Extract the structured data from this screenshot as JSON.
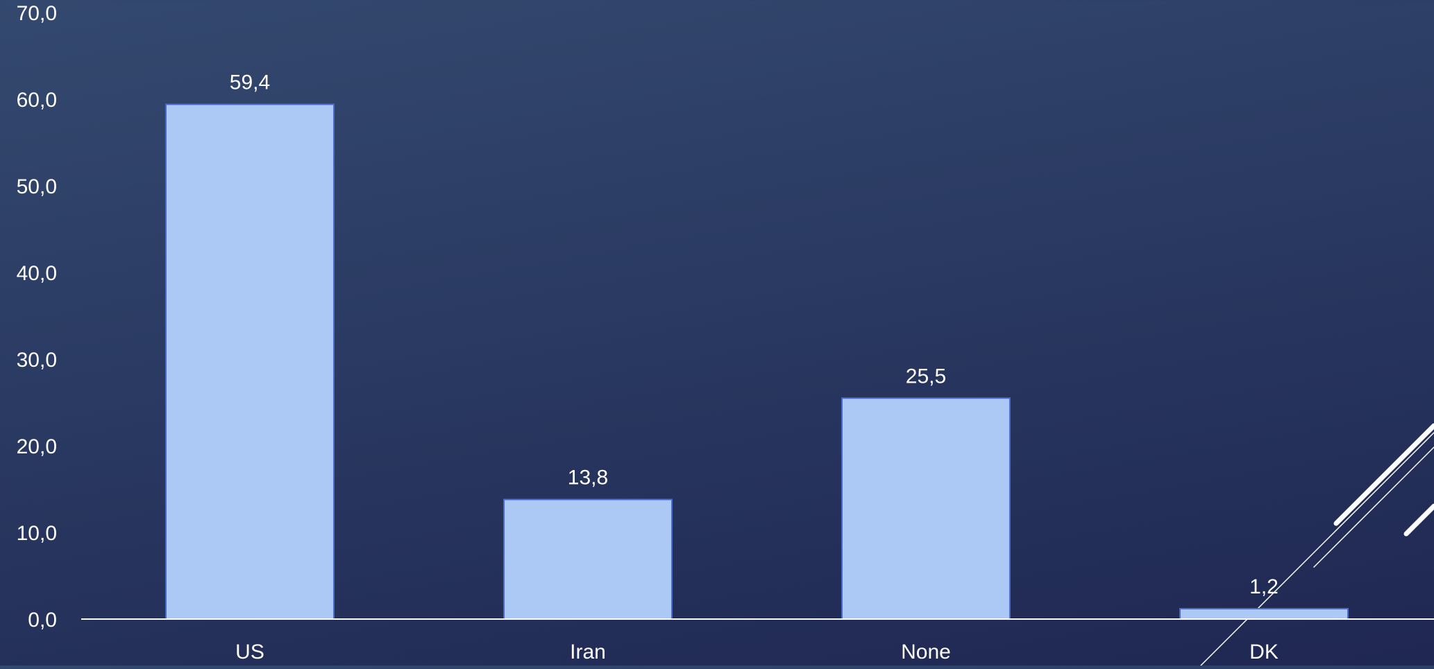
{
  "colors": {
    "bar_fill": "#acc9f6",
    "bar_stroke": "#4a6bc9",
    "text": "#ffffff",
    "axis": "#ffffff",
    "decor": "#ffffff"
  },
  "chart_data": {
    "type": "bar",
    "categories": [
      "US",
      "Iran",
      "None",
      "DK"
    ],
    "values": [
      59.4,
      13.8,
      25.5,
      1.2
    ],
    "value_labels": [
      "59,4",
      "13,8",
      "25,5",
      "1,2"
    ],
    "y_ticks": [
      0,
      10,
      20,
      30,
      40,
      50,
      60,
      70
    ],
    "y_tick_labels": [
      "0,0",
      "10,0",
      "20,0",
      "30,0",
      "40,0",
      "50,0",
      "60,0",
      "70,0"
    ],
    "ylim": [
      0,
      70
    ],
    "grid": false,
    "legend": "none",
    "title": "",
    "xlabel": "",
    "ylabel": ""
  }
}
